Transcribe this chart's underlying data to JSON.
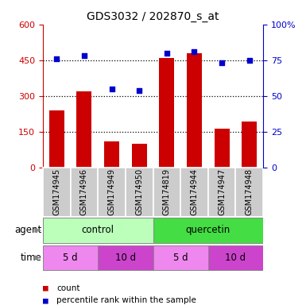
{
  "title": "GDS3032 / 202870_s_at",
  "samples": [
    "GSM174945",
    "GSM174946",
    "GSM174949",
    "GSM174950",
    "GSM174819",
    "GSM174944",
    "GSM174947",
    "GSM174948"
  ],
  "counts": [
    240,
    320,
    112,
    100,
    460,
    480,
    165,
    195
  ],
  "percentile_ranks": [
    76,
    78,
    55,
    54,
    80,
    81,
    73,
    75
  ],
  "ylim_left": [
    0,
    600
  ],
  "ylim_right": [
    0,
    100
  ],
  "yticks_left": [
    0,
    150,
    300,
    450,
    600
  ],
  "ytick_labels_left": [
    "0",
    "150",
    "300",
    "450",
    "600"
  ],
  "ytick_labels_right": [
    "0",
    "25",
    "50",
    "75",
    "100%"
  ],
  "bar_color": "#cc0000",
  "dot_color": "#0000cc",
  "agent_control_color": "#bbffbb",
  "agent_quercetin_color": "#44dd44",
  "time_5d_color": "#ee88ee",
  "time_10d_color": "#cc44cc",
  "sample_bg_color": "#cccccc",
  "sample_border_color": "#ffffff",
  "agent_label": "agent",
  "time_label": "time",
  "control_label": "control",
  "quercetin_label": "quercetin",
  "time_labels": [
    "5 d",
    "10 d",
    "5 d",
    "10 d"
  ],
  "legend_count_label": "count",
  "legend_pct_label": "percentile rank within the sample",
  "figsize": [
    3.85,
    3.84
  ],
  "dpi": 100
}
